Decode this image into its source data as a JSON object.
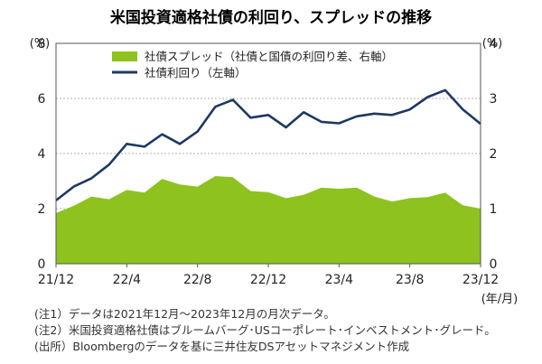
{
  "chart_data": {
    "type": "area+line",
    "title": "米国投資適格社債の利回り、スプレッドの推移",
    "left_axis_unit": "(%)",
    "right_axis_unit": "(%)",
    "x_axis_unit": "(年/月)",
    "left_ylim": [
      0,
      8
    ],
    "right_ylim": [
      0,
      4
    ],
    "left_ticks": [
      "0",
      "2",
      "4",
      "6",
      "8"
    ],
    "right_ticks": [
      "0",
      "1",
      "2",
      "3",
      "4"
    ],
    "x_tick_labels": [
      "21/12",
      "22/4",
      "22/8",
      "22/12",
      "23/4",
      "23/8",
      "23/12"
    ],
    "months": [
      "21/12",
      "22/1",
      "22/2",
      "22/3",
      "22/4",
      "22/5",
      "22/6",
      "22/7",
      "22/8",
      "22/9",
      "22/10",
      "22/11",
      "22/12",
      "23/1",
      "23/2",
      "23/3",
      "23/4",
      "23/5",
      "23/6",
      "23/7",
      "23/8",
      "23/9",
      "23/10",
      "23/11",
      "23/12"
    ],
    "series": [
      {
        "name": "社債スプレッド（社債と国債の利回り差、右軸）",
        "axis": "right",
        "kind": "area",
        "color": "#8dc21f",
        "values": [
          0.92,
          1.05,
          1.22,
          1.17,
          1.34,
          1.29,
          1.54,
          1.44,
          1.4,
          1.59,
          1.57,
          1.32,
          1.3,
          1.19,
          1.25,
          1.38,
          1.36,
          1.38,
          1.22,
          1.13,
          1.19,
          1.21,
          1.29,
          1.06,
          1.0
        ]
      },
      {
        "name": "社債利回り（左軸）",
        "axis": "left",
        "kind": "line",
        "color": "#1f3864",
        "values": [
          2.3,
          2.8,
          3.1,
          3.6,
          4.35,
          4.25,
          4.7,
          4.35,
          4.8,
          5.7,
          5.95,
          5.3,
          5.4,
          4.95,
          5.5,
          5.15,
          5.1,
          5.35,
          5.45,
          5.4,
          5.6,
          6.05,
          6.3,
          5.6,
          5.08
        ]
      }
    ]
  },
  "notes": [
    "(注1）データは2021年12月～2023年12月の月次データ。",
    "(注2）米国投資適格社債はブルームバーグ･USコーポレート･インベストメント･グレード。",
    "(出所）Bloombergのデータを基に三井住友DSアセットマネジメント作成"
  ]
}
